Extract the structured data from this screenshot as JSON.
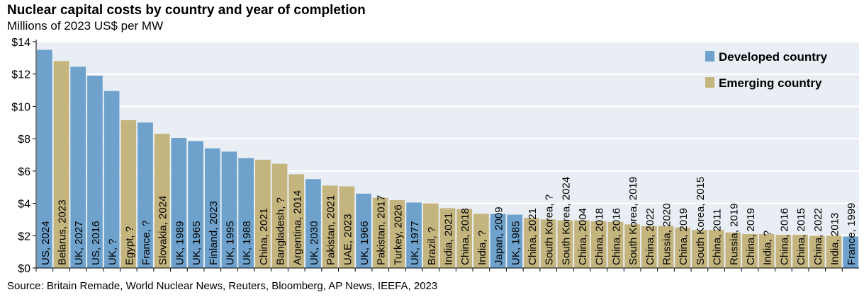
{
  "chart_data": {
    "type": "bar",
    "title": "Nuclear capital costs by country and year of completion",
    "subtitle": "Millions of 2023 US$ per MW",
    "source": "Source: Britain Remade, World Nuclear News, Reuters, Bloomberg, AP News, IEEFA,  2023",
    "ylim": [
      0,
      14
    ],
    "yticks": [
      "$0",
      "$2",
      "$4",
      "$6",
      "$8",
      "$10",
      "$12",
      "$14"
    ],
    "legend": [
      {
        "name": "Developed country",
        "color": "#6ea2cc"
      },
      {
        "name": "Emerging country",
        "color": "#c4b47e"
      }
    ],
    "legend_position": "top-right",
    "categories": [
      "US, 2024",
      "Belarus, 2023",
      "UK, 2027",
      "US, 2016",
      "UK, ?",
      "Egypt, ?",
      "France, ?",
      "Slovakia, 2024",
      "UK, 1989",
      "UK, 1965",
      "Finland, 2023",
      "UK, 1995",
      "UK, 1988",
      "China, 2021",
      "Bangladesh, ?",
      "Argentina, 2014",
      "UK, 2030",
      "Pakistan, 2021",
      "UAE, 2023",
      "UK, 1966",
      "Pakistan, 2017",
      "Turkey, 2026",
      "UK, 1977",
      "Brazil, ?",
      "India, 2021",
      "China, 2018",
      "India, ?",
      "Japan, 2009",
      "UK, 1985",
      "China, 2021",
      "South Korea, ?",
      "South Korea, 2024",
      "China, 2004",
      "China, 2018",
      "China, 2016",
      "South Korea, 2019",
      "China, 2022",
      "Russia, 2020",
      "China, 2019",
      "South Korea, 2015",
      "China, 2011",
      "Russia, 2019",
      "China, 2019",
      "India, ?",
      "China, 2016",
      "China, 2015",
      "China, 2022",
      "India, 2013",
      "France, 1999"
    ],
    "values": [
      13.5,
      12.8,
      12.45,
      11.9,
      10.95,
      9.15,
      9.0,
      8.3,
      8.05,
      7.85,
      7.4,
      7.2,
      6.8,
      6.7,
      6.45,
      5.8,
      5.5,
      5.1,
      5.05,
      4.6,
      4.35,
      4.2,
      4.05,
      4.0,
      3.7,
      3.65,
      3.35,
      3.35,
      3.3,
      3.1,
      3.0,
      2.95,
      2.95,
      2.9,
      2.85,
      2.7,
      2.6,
      2.6,
      2.5,
      2.35,
      2.35,
      2.2,
      2.1,
      2.1,
      2.05,
      2.05,
      2.0,
      2.0,
      1.95
    ],
    "groups": [
      0,
      1,
      0,
      0,
      0,
      1,
      0,
      1,
      0,
      0,
      0,
      0,
      0,
      1,
      1,
      1,
      0,
      1,
      1,
      0,
      1,
      1,
      0,
      1,
      1,
      1,
      1,
      0,
      0,
      1,
      1,
      1,
      1,
      1,
      1,
      1,
      1,
      1,
      1,
      1,
      1,
      1,
      1,
      1,
      1,
      1,
      1,
      1,
      0
    ]
  }
}
